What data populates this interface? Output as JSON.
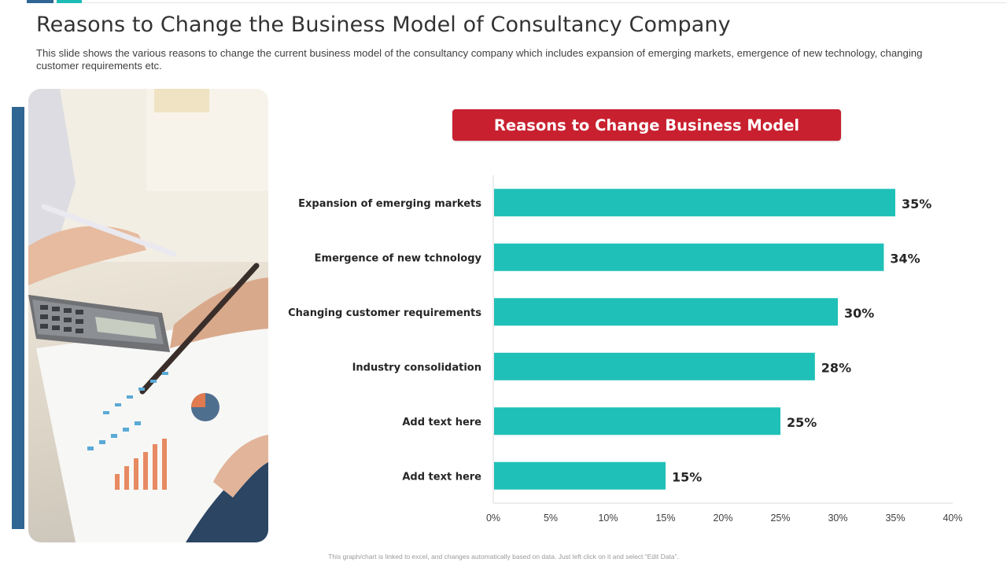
{
  "slide": {
    "title": "Reasons to Change the Business Model of Consultancy Company",
    "subtitle": "This slide shows the various reasons to change the current business model of the consultancy company which includes expansion of emerging markets, emergence of new technology, changing customer requirements etc.",
    "footnote": "This graph/chart is linked to excel, and changes automatically based on data. Just left click on it and select “Edit Data”."
  },
  "colors": {
    "accent_blue": "#2f6694",
    "accent_teal": "#1cbcb6",
    "bar_color": "#1fc0b8",
    "title_box": "#c9202f"
  },
  "chart_data": {
    "type": "bar",
    "orientation": "horizontal",
    "title": "Reasons to Change Business Model",
    "categories": [
      "Expansion of emerging markets",
      "Emergence of new tchnology",
      "Changing customer requirements",
      "Industry consolidation",
      "Add text here",
      "Add text here"
    ],
    "values": [
      35,
      34,
      30,
      28,
      25,
      15
    ],
    "value_labels": [
      "35%",
      "34%",
      "30%",
      "28%",
      "25%",
      "15%"
    ],
    "xlim": [
      0,
      40
    ],
    "x_ticks": [
      "0%",
      "5%",
      "10%",
      "15%",
      "20%",
      "25%",
      "30%",
      "35%",
      "40%"
    ],
    "x_tick_values": [
      0,
      5,
      10,
      15,
      20,
      25,
      30,
      35,
      40
    ],
    "grid": false,
    "legend": "none"
  }
}
